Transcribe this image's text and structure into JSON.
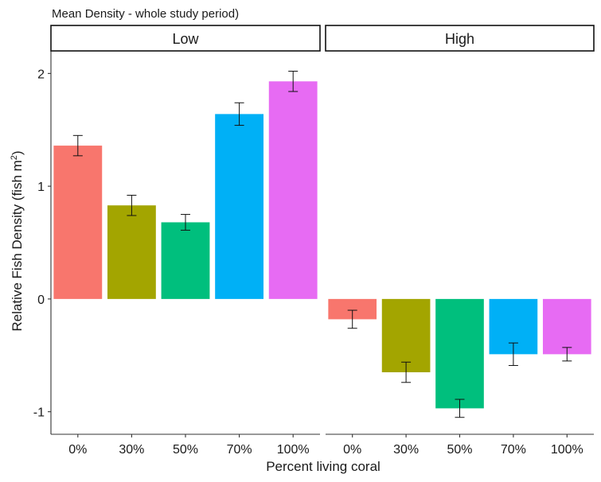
{
  "chart_data": {
    "type": "bar",
    "title": "Mean Density - whole study period)",
    "xlabel": "Percent living coral",
    "ylabel": "Relative Fish Density (fish m",
    "ylabel_superscript": "2",
    "ylabel_close": ")",
    "categories": [
      "0%",
      "30%",
      "50%",
      "70%",
      "100%"
    ],
    "ylim": [
      -1.2,
      2.2
    ],
    "yticks": [
      -1,
      0,
      1,
      2
    ],
    "ytick_labels": [
      "-1",
      "0",
      "1",
      "2"
    ],
    "grid": false,
    "colors": [
      "#F8766D",
      "#A3A500",
      "#00BF7D",
      "#00B0F6",
      "#E76BF3"
    ],
    "panels": [
      {
        "label": "Low",
        "values": [
          1.36,
          0.83,
          0.68,
          1.64,
          1.93
        ],
        "errors": [
          0.09,
          0.09,
          0.07,
          0.1,
          0.09
        ]
      },
      {
        "label": "High",
        "values": [
          -0.18,
          -0.65,
          -0.97,
          -0.49,
          -0.49
        ],
        "errors": [
          0.08,
          0.09,
          0.08,
          0.1,
          0.06
        ]
      }
    ]
  }
}
